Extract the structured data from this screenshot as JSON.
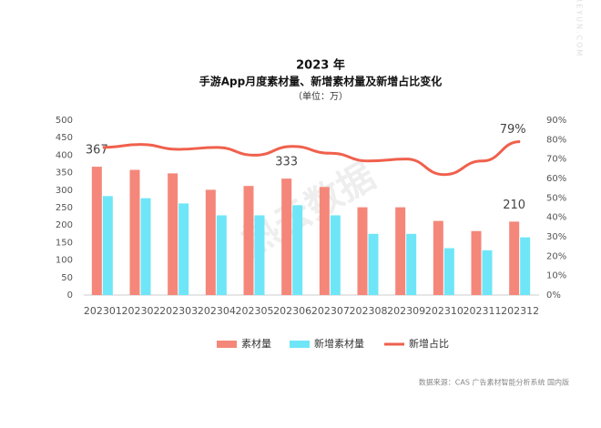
{
  "chart_data": {
    "type": "bar-line",
    "title": "2023 年",
    "subtitle": "手游App月度素材量、新增素材量及新增占比变化",
    "unit": "（单位：万）",
    "source": "数据来源：CAS 广告素材智能分析系统 国内版",
    "watermark": "热云数据",
    "side_watermark": "REYUN.COM",
    "categories": [
      "202301",
      "202302",
      "202303",
      "202304",
      "202305",
      "202306",
      "202307",
      "202308",
      "202309",
      "202310",
      "202311",
      "202312"
    ],
    "series": [
      {
        "name": "素材量",
        "type": "bar",
        "color": "#f4877a",
        "values": [
          367,
          358,
          348,
          301,
          312,
          333,
          309,
          251,
          251,
          212,
          183,
          210
        ],
        "value_labels": [
          "367",
          null,
          null,
          null,
          null,
          "333",
          null,
          null,
          null,
          null,
          null,
          "210"
        ]
      },
      {
        "name": "新增素材量",
        "type": "bar",
        "color": "#6ee6f7",
        "values": [
          283,
          277,
          262,
          228,
          228,
          257,
          228,
          175,
          175,
          134,
          128,
          165
        ]
      },
      {
        "name": "新增占比",
        "type": "line",
        "axis": "y2",
        "color": "#f0604c",
        "values": [
          76,
          77.5,
          75,
          76,
          72,
          76.5,
          73,
          69,
          70,
          62,
          69,
          79
        ],
        "value_labels": [
          null,
          null,
          null,
          null,
          null,
          null,
          null,
          null,
          null,
          null,
          null,
          "79%"
        ]
      }
    ],
    "ylim": [
      0,
      500
    ],
    "yticks": [
      0,
      50,
      100,
      150,
      200,
      250,
      300,
      350,
      400,
      450,
      500
    ],
    "y2lim": [
      0,
      90
    ],
    "y2ticks": [
      {
        "value": 0,
        "label": "0%"
      },
      {
        "value": 10,
        "label": "10%"
      },
      {
        "value": 20,
        "label": "20%"
      },
      {
        "value": 30,
        "label": "30%"
      },
      {
        "value": 40,
        "label": "40%"
      },
      {
        "value": 50,
        "label": "50%"
      },
      {
        "value": 60,
        "label": "60%"
      },
      {
        "value": 70,
        "label": "70%"
      },
      {
        "value": 80,
        "label": "80%"
      },
      {
        "value": 90,
        "label": "90%"
      }
    ],
    "legend": "bottom"
  }
}
